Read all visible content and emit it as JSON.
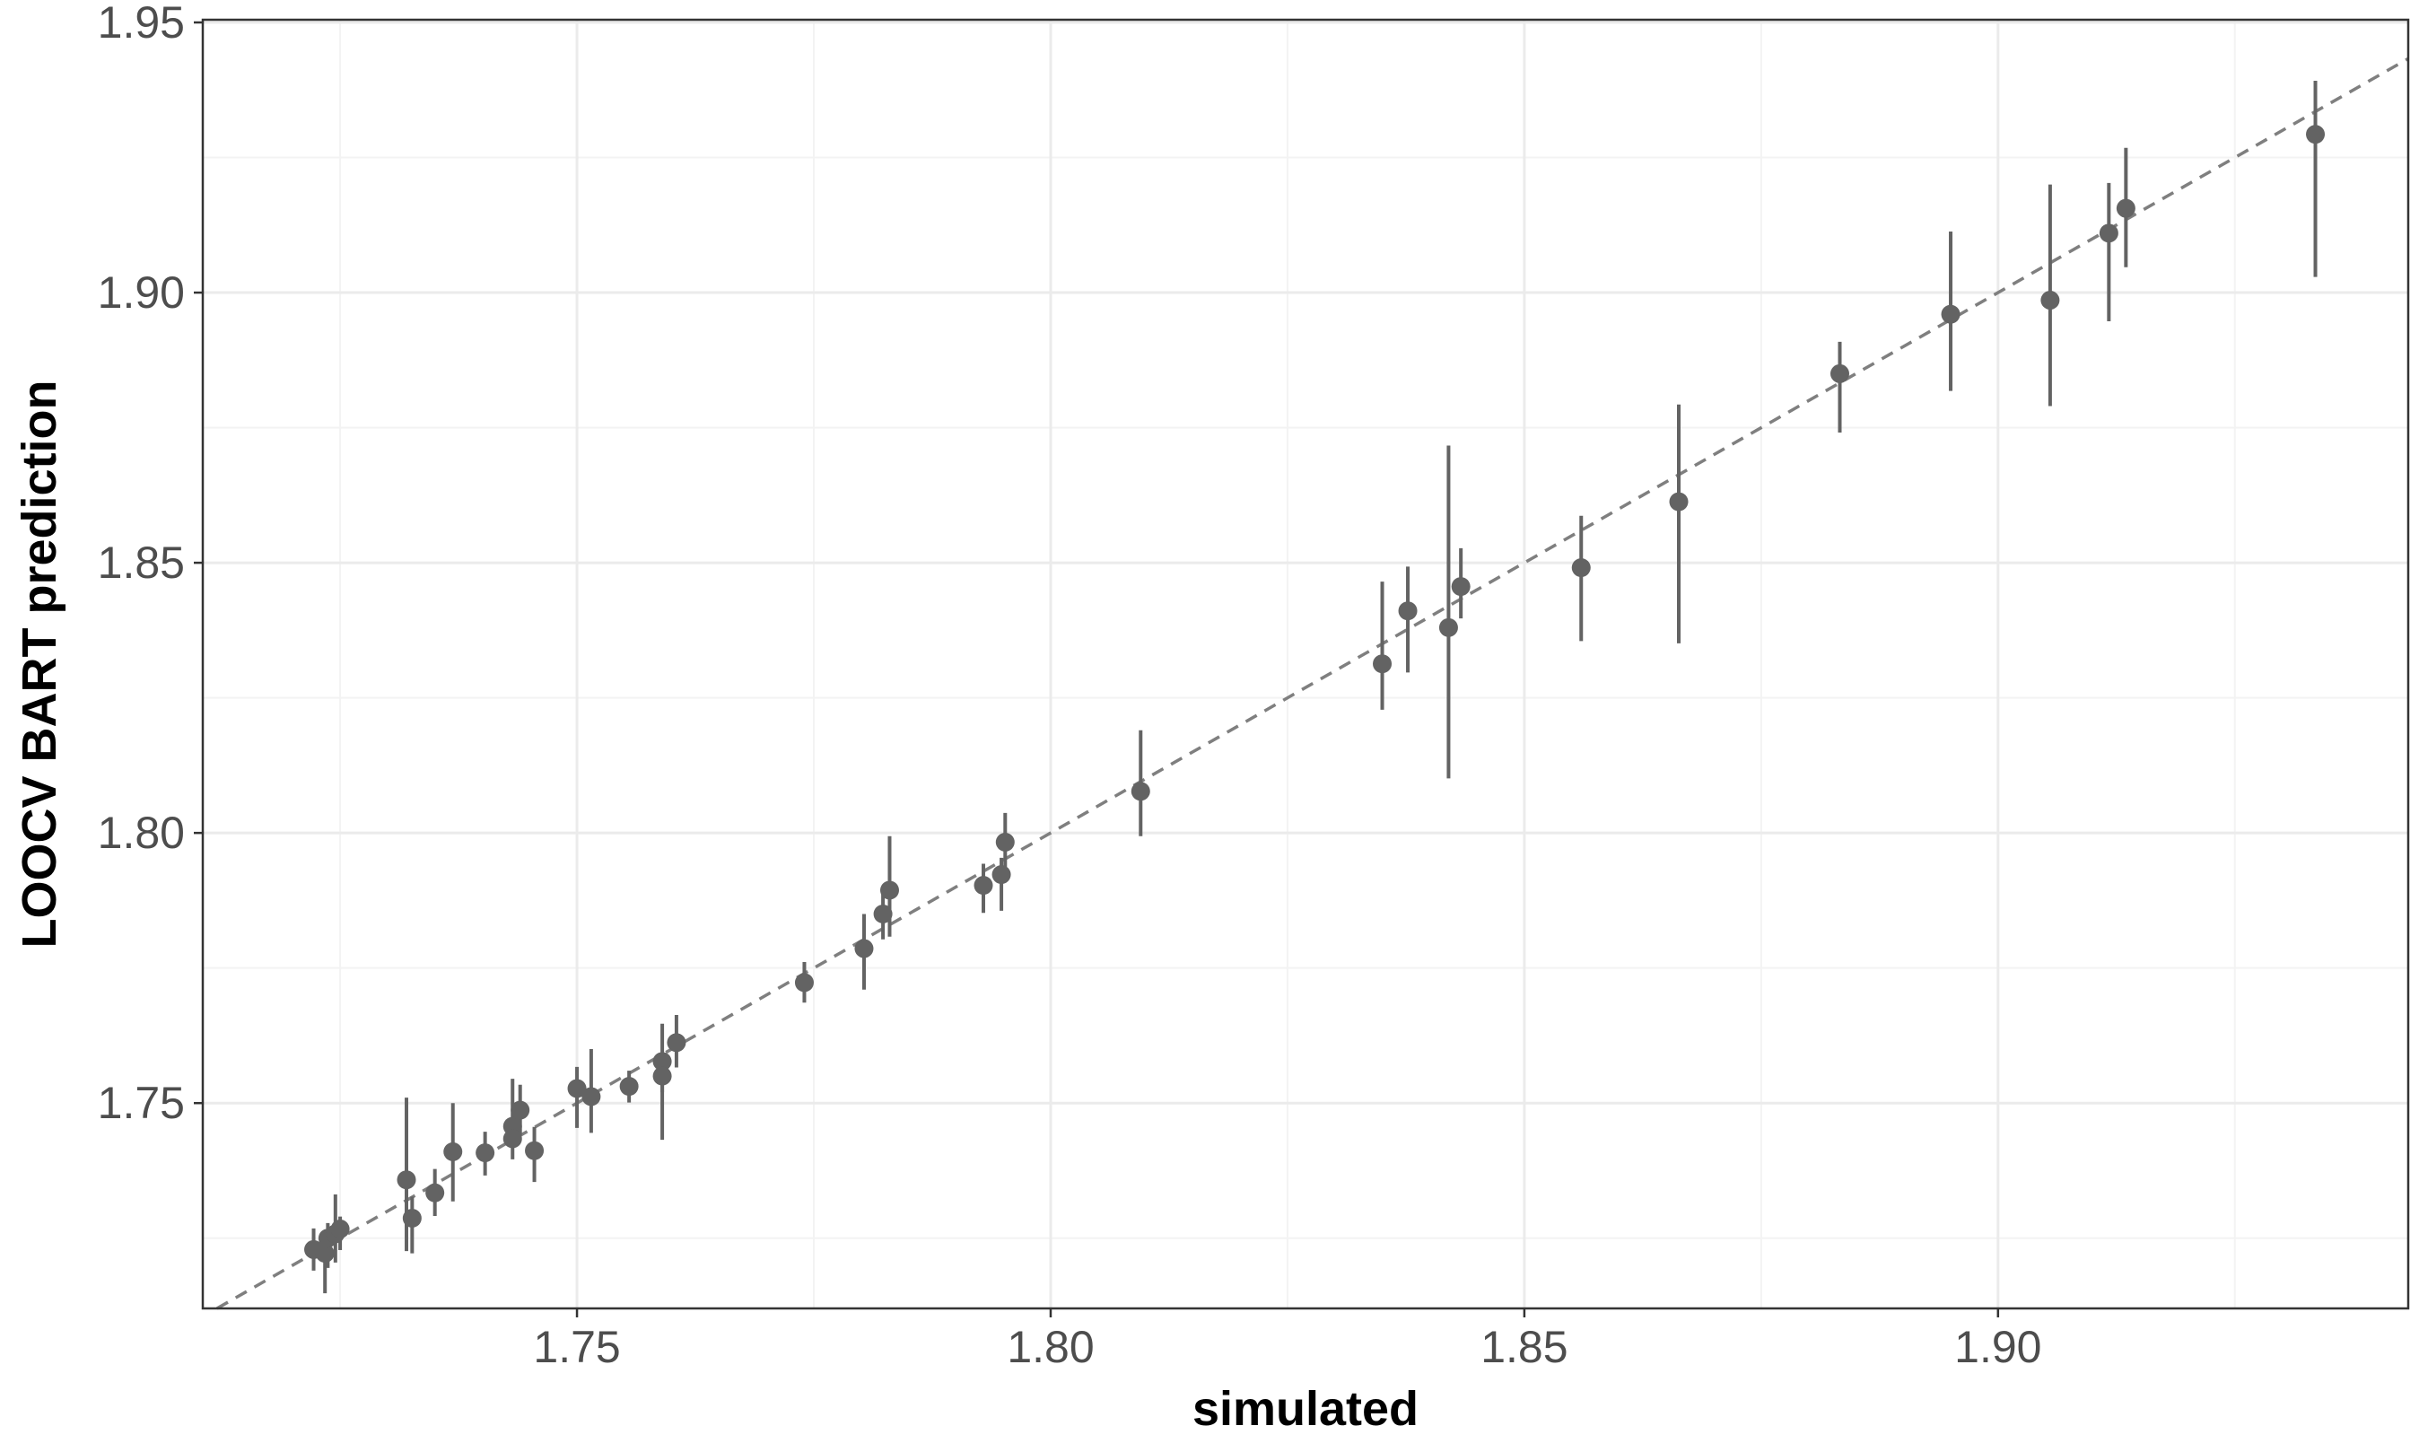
{
  "chart_data": {
    "type": "scatter",
    "title": "",
    "xlabel": "simulated",
    "ylabel": "LOOCV BART prediction",
    "xlim": [
      1.7105,
      1.9433
    ],
    "ylim": [
      1.712,
      1.9505
    ],
    "x_ticks": [
      1.75,
      1.8,
      1.85,
      1.9
    ],
    "x_tick_labels": [
      "1.75",
      "1.80",
      "1.85",
      "1.90"
    ],
    "y_ticks": [
      1.75,
      1.8,
      1.85,
      1.9,
      1.95
    ],
    "y_tick_labels": [
      "1.75",
      "1.80",
      "1.85",
      "1.90",
      "1.95"
    ],
    "grid": true,
    "reference_line": {
      "style": "dashed",
      "slope": 1,
      "intercept": 0
    },
    "colors": {
      "points": "#636363",
      "errorbars": "#636363",
      "reference_line": "#7f7f7f",
      "grid_major": "#ebebeb",
      "grid_minor": "#f3f3f3",
      "panel_border": "#333333"
    },
    "points": [
      {
        "x": 1.7222,
        "y": 1.7229,
        "lo": 1.719,
        "hi": 1.7268
      },
      {
        "x": 1.7234,
        "y": 1.7222,
        "lo": 1.7148,
        "hi": 1.7264
      },
      {
        "x": 1.7237,
        "y": 1.725,
        "lo": 1.7195,
        "hi": 1.7278
      },
      {
        "x": 1.7245,
        "y": 1.7258,
        "lo": 1.7205,
        "hi": 1.7331
      },
      {
        "x": 1.725,
        "y": 1.7267,
        "lo": 1.7228,
        "hi": 1.729
      },
      {
        "x": 1.732,
        "y": 1.7358,
        "lo": 1.7226,
        "hi": 1.751
      },
      {
        "x": 1.7326,
        "y": 1.7287,
        "lo": 1.7222,
        "hi": 1.7327
      },
      {
        "x": 1.735,
        "y": 1.7334,
        "lo": 1.7291,
        "hi": 1.7378
      },
      {
        "x": 1.7369,
        "y": 1.741,
        "lo": 1.7318,
        "hi": 1.75
      },
      {
        "x": 1.7403,
        "y": 1.7408,
        "lo": 1.7366,
        "hi": 1.7447
      },
      {
        "x": 1.7432,
        "y": 1.7457,
        "lo": 1.7419,
        "hi": 1.7545
      },
      {
        "x": 1.7432,
        "y": 1.7434,
        "lo": 1.7396,
        "hi": 1.7472
      },
      {
        "x": 1.744,
        "y": 1.7487,
        "lo": 1.744,
        "hi": 1.7534
      },
      {
        "x": 1.7455,
        "y": 1.7412,
        "lo": 1.7354,
        "hi": 1.7456
      },
      {
        "x": 1.75,
        "y": 1.7527,
        "lo": 1.7454,
        "hi": 1.7567
      },
      {
        "x": 1.7515,
        "y": 1.7512,
        "lo": 1.7445,
        "hi": 1.76
      },
      {
        "x": 1.7555,
        "y": 1.7531,
        "lo": 1.7501,
        "hi": 1.756
      },
      {
        "x": 1.759,
        "y": 1.7577,
        "lo": 1.752,
        "hi": 1.7647
      },
      {
        "x": 1.759,
        "y": 1.755,
        "lo": 1.7432,
        "hi": 1.759
      },
      {
        "x": 1.7605,
        "y": 1.7612,
        "lo": 1.7566,
        "hi": 1.7663
      },
      {
        "x": 1.774,
        "y": 1.7723,
        "lo": 1.7686,
        "hi": 1.7761
      },
      {
        "x": 1.7803,
        "y": 1.7786,
        "lo": 1.771,
        "hi": 1.785
      },
      {
        "x": 1.7823,
        "y": 1.785,
        "lo": 1.7803,
        "hi": 1.789
      },
      {
        "x": 1.783,
        "y": 1.7894,
        "lo": 1.7808,
        "hi": 1.7994
      },
      {
        "x": 1.7929,
        "y": 1.7903,
        "lo": 1.7852,
        "hi": 1.7943
      },
      {
        "x": 1.7948,
        "y": 1.7923,
        "lo": 1.7856,
        "hi": 1.7954
      },
      {
        "x": 1.7952,
        "y": 1.7983,
        "lo": 1.7932,
        "hi": 1.8037
      },
      {
        "x": 1.8095,
        "y": 1.8077,
        "lo": 1.7994,
        "hi": 1.819
      },
      {
        "x": 1.835,
        "y": 1.8313,
        "lo": 1.8228,
        "hi": 1.8465
      },
      {
        "x": 1.8377,
        "y": 1.8411,
        "lo": 1.8297,
        "hi": 1.8493
      },
      {
        "x": 1.842,
        "y": 1.838,
        "lo": 1.8101,
        "hi": 1.8717
      },
      {
        "x": 1.8433,
        "y": 1.8456,
        "lo": 1.8397,
        "hi": 1.8527
      },
      {
        "x": 1.856,
        "y": 1.8491,
        "lo": 1.8355,
        "hi": 1.8587
      },
      {
        "x": 1.8663,
        "y": 1.8613,
        "lo": 1.8351,
        "hi": 1.8793
      },
      {
        "x": 1.8833,
        "y": 1.885,
        "lo": 1.8741,
        "hi": 1.8909
      },
      {
        "x": 1.895,
        "y": 1.896,
        "lo": 1.8818,
        "hi": 1.9113
      },
      {
        "x": 1.9055,
        "y": 1.8986,
        "lo": 1.879,
        "hi": 1.92
      },
      {
        "x": 1.9117,
        "y": 1.911,
        "lo": 1.8947,
        "hi": 1.9203
      },
      {
        "x": 1.9135,
        "y": 1.9156,
        "lo": 1.9047,
        "hi": 1.9268
      },
      {
        "x": 1.9335,
        "y": 1.9293,
        "lo": 1.9029,
        "hi": 1.9392
      }
    ]
  }
}
